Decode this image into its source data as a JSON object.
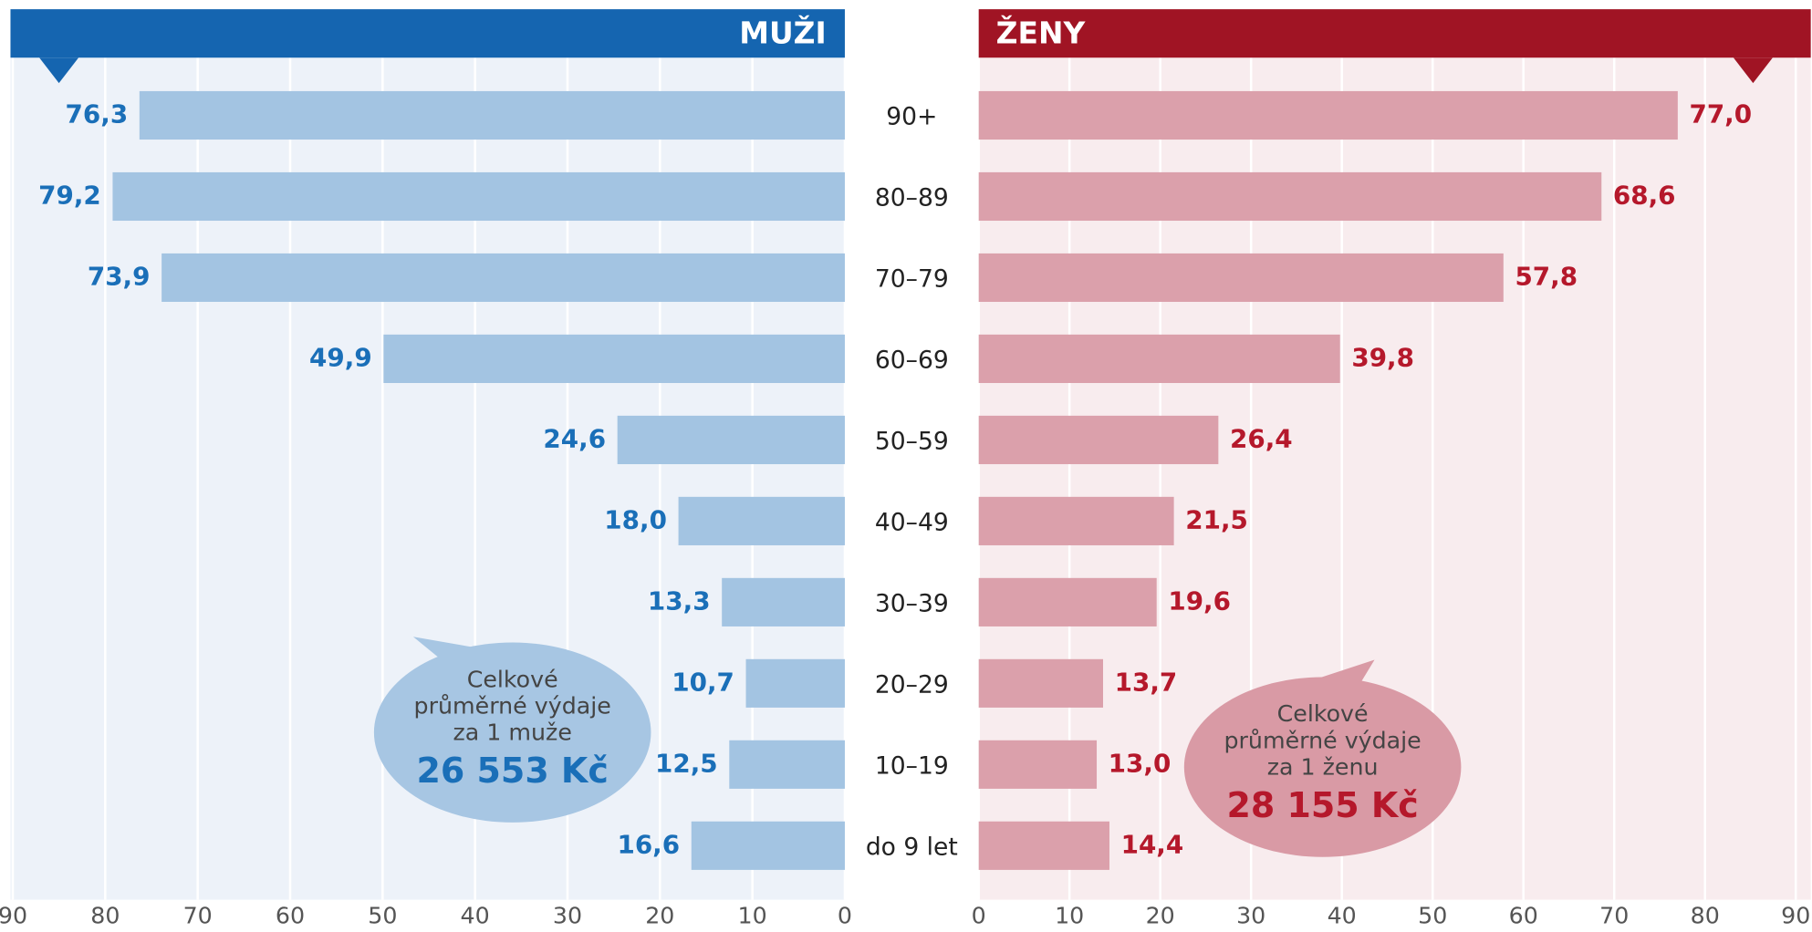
{
  "chart_data": {
    "type": "butterfly",
    "categories": [
      "90+",
      "80–89",
      "70–79",
      "60–69",
      "50–59",
      "40–49",
      "30–39",
      "20–29",
      "10–19",
      "do 9 let"
    ],
    "series": [
      {
        "name": "MUŽI",
        "color": "#a3c4e2",
        "header_color": "#1565b0",
        "label_color": "#1a6fb8",
        "background": "#edf2f9",
        "values": [
          76.3,
          79.2,
          73.9,
          49.9,
          24.6,
          18.0,
          13.3,
          10.7,
          12.5,
          16.6
        ],
        "value_labels": [
          "76,3",
          "79,2",
          "73,9",
          "49,9",
          "24,6",
          "18,0",
          "13,3",
          "10,7",
          "12,5",
          "16,6"
        ],
        "note_lines": [
          "Celkové",
          "průměrné výdaje",
          "za 1 muže"
        ],
        "note_total": "26 553 Kč",
        "note_color": "#a7c6e3"
      },
      {
        "name": "ŽENY",
        "color": "#dba0ab",
        "header_color": "#a01424",
        "label_color": "#b5182b",
        "background": "#f8ecee",
        "values": [
          77.0,
          68.6,
          57.8,
          39.8,
          26.4,
          21.5,
          19.6,
          13.7,
          13.0,
          14.4
        ],
        "value_labels": [
          "77,0",
          "68,6",
          "57,8",
          "39,8",
          "26,4",
          "21,5",
          "19,6",
          "13,7",
          "13,0",
          "14,4"
        ],
        "note_lines": [
          "Celkové",
          "průměrné výdaje",
          "za 1 ženu"
        ],
        "note_total": "28 155 Kč",
        "note_color": "#d99aa5"
      }
    ],
    "xlim": [
      0,
      90
    ],
    "xticks": [
      0,
      10,
      20,
      30,
      40,
      50,
      60,
      70,
      80,
      90
    ],
    "grid": true
  }
}
